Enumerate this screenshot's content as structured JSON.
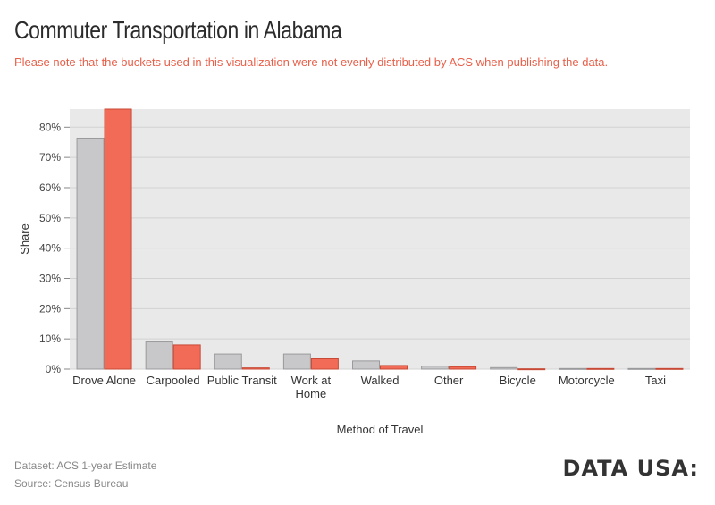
{
  "header": {
    "title": "Commuter Transportation in Alabama",
    "subtitle": "Please note that the buckets used in this visualization were not evenly distributed by ACS when publishing the data."
  },
  "footer": {
    "dataset": "Dataset: ACS 1-year Estimate",
    "source": "Source: Census Bureau",
    "logo": "DATA USA:"
  },
  "colors": {
    "series_gray": "#c8c8ca",
    "series_gray_stroke": "#9a9a9c",
    "series_red": "#f26b57",
    "series_red_stroke": "#c84a36",
    "plot_bg": "#e9e9e9",
    "grid": "#d2d2d2"
  },
  "chart_data": {
    "type": "bar",
    "xlabel": "Method of Travel",
    "ylabel": "Share",
    "ylim": [
      0,
      86
    ],
    "yticks": [
      0,
      10,
      20,
      30,
      40,
      50,
      60,
      70,
      80
    ],
    "ytick_labels": [
      "0%",
      "10%",
      "20%",
      "30%",
      "40%",
      "50%",
      "60%",
      "70%",
      "80%"
    ],
    "grid": true,
    "categories": [
      [
        "Drove Alone"
      ],
      [
        "Carpooled"
      ],
      [
        "Public Transit"
      ],
      [
        "Work at",
        "Home"
      ],
      [
        "Walked"
      ],
      [
        "Other"
      ],
      [
        "Bicycle"
      ],
      [
        "Motorcycle"
      ],
      [
        "Taxi"
      ]
    ],
    "series": [
      {
        "values": [
          76.4,
          9.0,
          5.0,
          5.0,
          2.7,
          1.0,
          0.5,
          0.2,
          0.2
        ]
      },
      {
        "values": [
          86.0,
          8.0,
          0.4,
          3.4,
          1.2,
          0.8,
          0.1,
          0.2,
          0.2
        ]
      }
    ]
  }
}
